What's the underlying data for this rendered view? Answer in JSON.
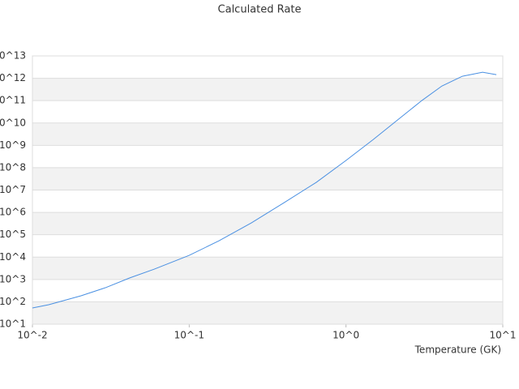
{
  "chart_data": {
    "type": "line",
    "title": "Calculated Rate",
    "xlabel": "Temperature (GK)",
    "log_x": true,
    "log_y": true,
    "band_color": "#f2f2f2",
    "xlim": [
      0.01,
      10
    ],
    "ylim": [
      10,
      10000000000000
    ],
    "xticks": [
      {
        "value": 0.01,
        "label": "10^-2"
      },
      {
        "value": 0.1,
        "label": "10^-1"
      },
      {
        "value": 1,
        "label": "10^0"
      },
      {
        "value": 10,
        "label": "10^1"
      }
    ],
    "yticks": [
      {
        "value": 10,
        "label": "10^1"
      },
      {
        "value": 100,
        "label": "10^2"
      },
      {
        "value": 1000,
        "label": "10^3"
      },
      {
        "value": 10000,
        "label": "10^4"
      },
      {
        "value": 100000,
        "label": "10^5"
      },
      {
        "value": 1000000,
        "label": "10^6"
      },
      {
        "value": 10000000,
        "label": "10^7"
      },
      {
        "value": 100000000,
        "label": "10^8"
      },
      {
        "value": 1000000000,
        "label": "10^9"
      },
      {
        "value": 10000000000,
        "label": "10^10"
      },
      {
        "value": 100000000000,
        "label": "10^11"
      },
      {
        "value": 1000000000000,
        "label": "10^12"
      },
      {
        "value": 10000000000000,
        "label": "10^13"
      }
    ],
    "x": [
      0.01,
      0.0127,
      0.0204,
      0.0292,
      0.0418,
      0.0597,
      0.1,
      0.155,
      0.249,
      0.402,
      0.646,
      1,
      1.49,
      2.13,
      3.04,
      4.09,
      5.52,
      7.43,
      9.1
    ],
    "series": [
      {
        "color": "#4a90e2",
        "values": [
          53,
          74,
          186,
          427,
          1175,
          2880,
          12000,
          53700,
          339000,
          2700000,
          22000000,
          210000000,
          1800000000,
          13500000000,
          100000000000,
          450000000000,
          1230000000000,
          1860000000000,
          1450000000000
        ]
      }
    ]
  }
}
